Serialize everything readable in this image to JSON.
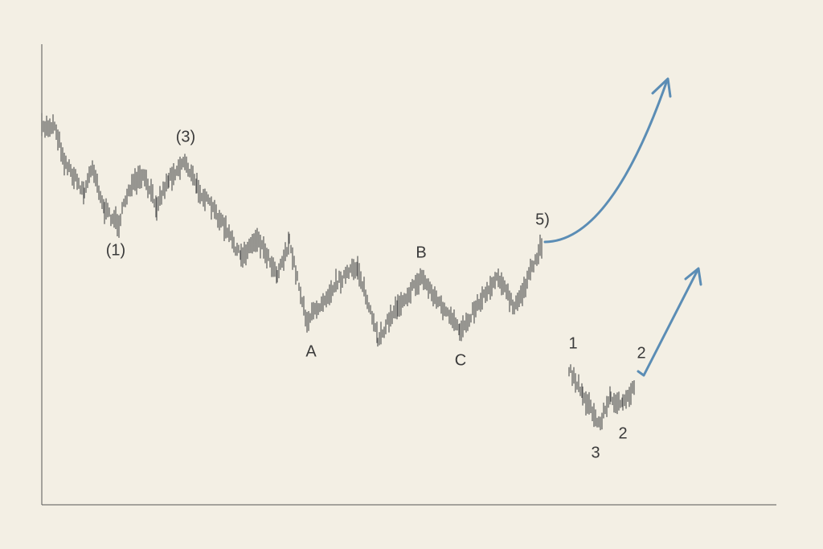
{
  "labels": {
    "wave_1_major": "(1)",
    "wave_3_major": "(3)",
    "wave_5_major": "5)",
    "a": "A",
    "b": "B",
    "c": "C",
    "minor_1": "1",
    "minor_3": "3",
    "minor_2_low": "2",
    "minor_2_high": "2"
  }
}
